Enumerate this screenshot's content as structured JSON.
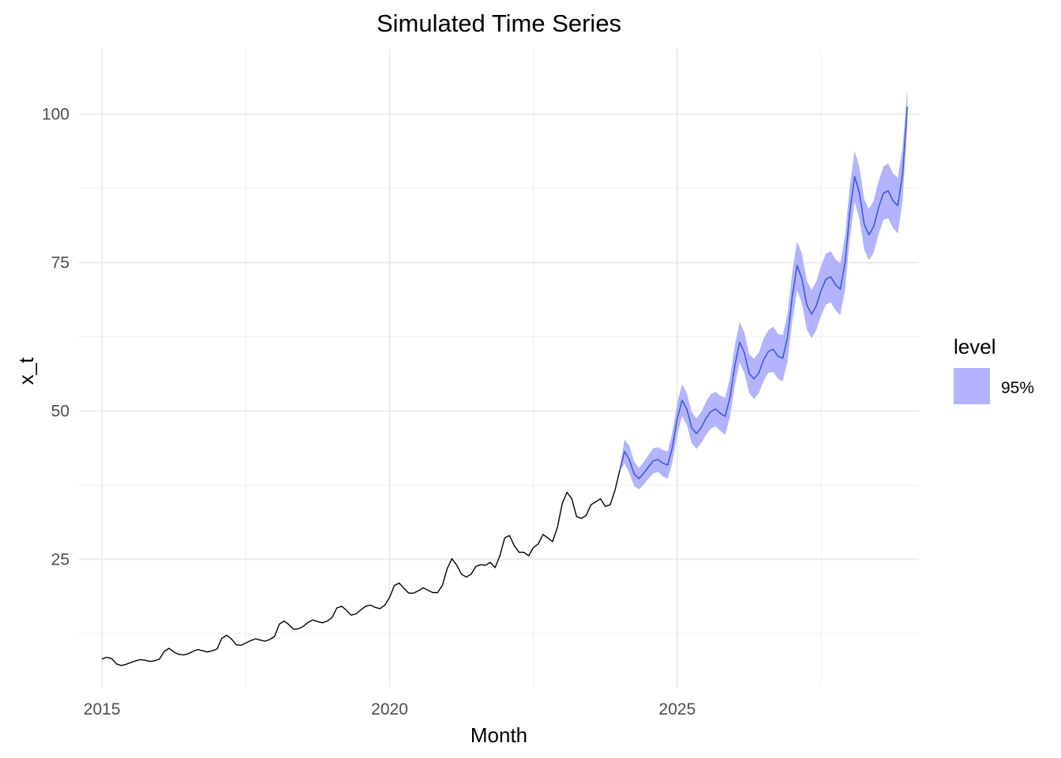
{
  "chart_data": {
    "type": "line",
    "title": "Simulated Time Series",
    "xlabel": "Month",
    "ylabel": "x_t",
    "xlim": [
      2014.6,
      2029.2
    ],
    "ylim": [
      3.5,
      111
    ],
    "x_ticks": [
      2015,
      2020,
      2025
    ],
    "x_tick_labels": [
      "2015",
      "2020",
      "2025"
    ],
    "y_ticks": [
      25,
      50,
      75,
      100
    ],
    "y_tick_labels": [
      "25",
      "50",
      "75",
      "100"
    ],
    "grid": true,
    "legend": {
      "title": "level",
      "entries": [
        {
          "label": "95%",
          "color": "#b3b3ff"
        }
      ],
      "position": "right"
    },
    "series": [
      {
        "kind": "history",
        "color": "#000000",
        "x_start": 2015.0,
        "step": 0.0833333,
        "values": [
          8.2,
          8.5,
          8.3,
          7.4,
          7.1,
          7.3,
          7.6,
          7.9,
          8.1,
          8.0,
          7.8,
          7.9,
          8.2,
          9.5,
          10.0,
          9.4,
          9.0,
          8.9,
          9.1,
          9.5,
          9.8,
          9.6,
          9.4,
          9.6,
          9.9,
          11.7,
          12.2,
          11.6,
          10.6,
          10.5,
          10.9,
          11.3,
          11.6,
          11.4,
          11.2,
          11.5,
          12.0,
          14.1,
          14.6,
          14.0,
          13.2,
          13.3,
          13.7,
          14.4,
          14.8,
          14.5,
          14.3,
          14.6,
          15.2,
          16.8,
          17.1,
          16.4,
          15.6,
          15.8,
          16.5,
          17.1,
          17.3,
          16.9,
          16.7,
          17.3,
          18.6,
          20.6,
          21.0,
          20.1,
          19.3,
          19.3,
          19.7,
          20.2,
          19.8,
          19.4,
          19.4,
          20.6,
          23.4,
          25.1,
          24.0,
          22.5,
          22.0,
          22.5,
          23.8,
          24.1,
          24.0,
          24.5,
          23.6,
          25.6,
          28.6,
          29.0,
          27.3,
          26.2,
          26.2,
          25.6,
          27.0,
          27.6,
          29.2,
          28.6,
          28.0,
          30.4,
          34.4,
          36.3,
          35.2,
          32.2,
          31.9,
          32.4,
          34.2,
          34.7,
          35.2,
          33.9,
          34.2,
          36.6,
          40.0
        ]
      },
      {
        "kind": "forecast",
        "color": "#3b5bdb",
        "x_start": 2024.0,
        "step": 0.0833333,
        "values": [
          40.0,
          43.2,
          41.8,
          39.4,
          38.6,
          39.5,
          40.6,
          41.6,
          41.8,
          41.2,
          40.9,
          43.9,
          48.7,
          51.8,
          50.3,
          47.2,
          46.2,
          47.2,
          48.8,
          49.9,
          50.3,
          49.6,
          49.1,
          52.3,
          57.6,
          61.6,
          59.8,
          56.3,
          55.4,
          56.4,
          58.6,
          60.0,
          60.4,
          59.2,
          58.9,
          62.4,
          69.4,
          74.5,
          72.3,
          67.9,
          66.3,
          67.7,
          70.3,
          72.2,
          72.6,
          71.3,
          70.5,
          75.0,
          83.5,
          89.5,
          86.7,
          81.4,
          79.7,
          81.1,
          84.3,
          86.7,
          87.1,
          85.4,
          84.6,
          90.0,
          101.3
        ],
        "ci_lower": [
          39.8,
          41.2,
          39.5,
          37.3,
          36.8,
          37.6,
          38.6,
          39.5,
          39.7,
          39.0,
          38.6,
          41.4,
          46.0,
          49.1,
          47.6,
          44.6,
          43.6,
          44.6,
          46.0,
          47.0,
          47.4,
          46.6,
          46.0,
          49.0,
          54.2,
          58.2,
          56.4,
          53.0,
          52.0,
          53.0,
          55.0,
          56.4,
          56.6,
          55.4,
          55.0,
          58.4,
          65.2,
          70.4,
          68.1,
          63.8,
          62.2,
          63.6,
          66.1,
          67.9,
          68.3,
          67.0,
          66.1,
          70.5,
          79.0,
          85.2,
          82.3,
          77.1,
          75.4,
          76.7,
          79.8,
          82.2,
          82.5,
          80.8,
          79.9,
          85.4,
          98.3
        ],
        "ci_upper": [
          40.2,
          45.2,
          44.1,
          41.5,
          40.4,
          41.4,
          42.6,
          43.7,
          43.9,
          43.4,
          43.2,
          46.4,
          51.4,
          54.5,
          53.0,
          49.8,
          48.8,
          49.8,
          51.6,
          52.8,
          53.2,
          52.6,
          52.2,
          55.6,
          61.0,
          65.0,
          63.2,
          59.6,
          58.8,
          59.8,
          62.2,
          63.6,
          64.2,
          63.0,
          62.8,
          66.4,
          73.6,
          78.6,
          76.5,
          72.0,
          70.4,
          71.8,
          74.5,
          76.5,
          76.9,
          75.6,
          74.9,
          79.5,
          88.0,
          93.8,
          91.1,
          85.7,
          84.0,
          85.5,
          88.8,
          91.2,
          91.7,
          90.0,
          89.3,
          94.6,
          104.3
        ]
      }
    ]
  }
}
